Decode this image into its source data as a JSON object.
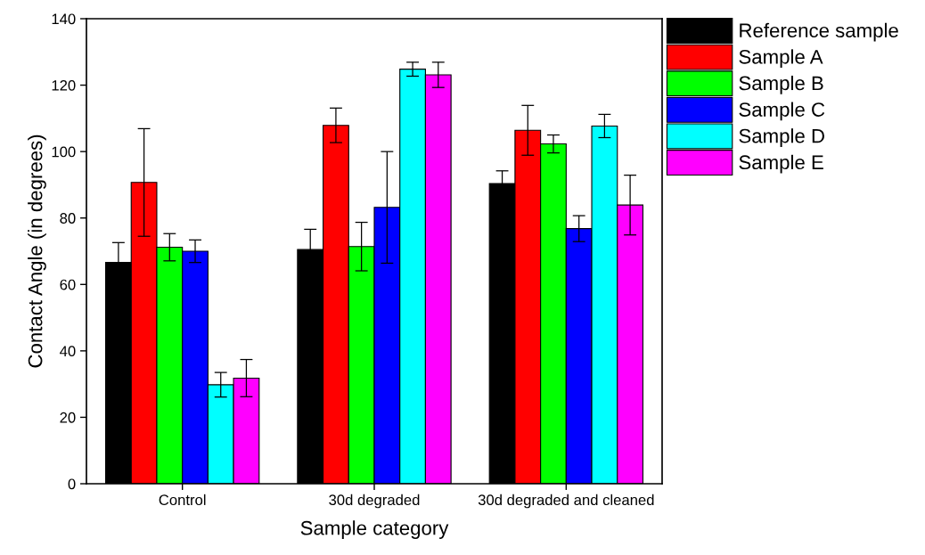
{
  "chart_data": {
    "type": "bar",
    "xlabel": "Sample category",
    "ylabel": "Contact Angle (in degrees)",
    "categories": [
      "Control",
      "30d degraded",
      "30d degraded and cleaned"
    ],
    "series": [
      {
        "name": "Reference sample",
        "color": "#000000",
        "values": [
          66.6,
          70.5,
          90.4
        ],
        "errors": [
          6.0,
          6.1,
          3.8
        ]
      },
      {
        "name": "Sample A",
        "color": "#ff0000",
        "values": [
          90.7,
          107.9,
          106.4
        ],
        "errors": [
          16.2,
          5.2,
          7.5
        ]
      },
      {
        "name": "Sample B",
        "color": "#00ff00",
        "values": [
          71.2,
          71.4,
          102.3
        ],
        "errors": [
          4.1,
          7.3,
          2.7
        ]
      },
      {
        "name": "Sample C",
        "color": "#0000ff",
        "values": [
          70.0,
          83.2,
          76.8
        ],
        "errors": [
          3.4,
          16.8,
          3.9
        ]
      },
      {
        "name": "Sample D",
        "color": "#00ffff",
        "values": [
          29.8,
          124.8,
          107.7
        ],
        "errors": [
          3.7,
          2.1,
          3.5
        ]
      },
      {
        "name": "Sample E",
        "color": "#ff00ff",
        "values": [
          31.8,
          123.1,
          83.9
        ],
        "errors": [
          5.6,
          3.8,
          9.0
        ]
      }
    ],
    "ylim": [
      0,
      140
    ],
    "yticks": [
      0,
      20,
      40,
      60,
      80,
      100,
      120,
      140
    ],
    "grid": false,
    "legend": "right"
  }
}
